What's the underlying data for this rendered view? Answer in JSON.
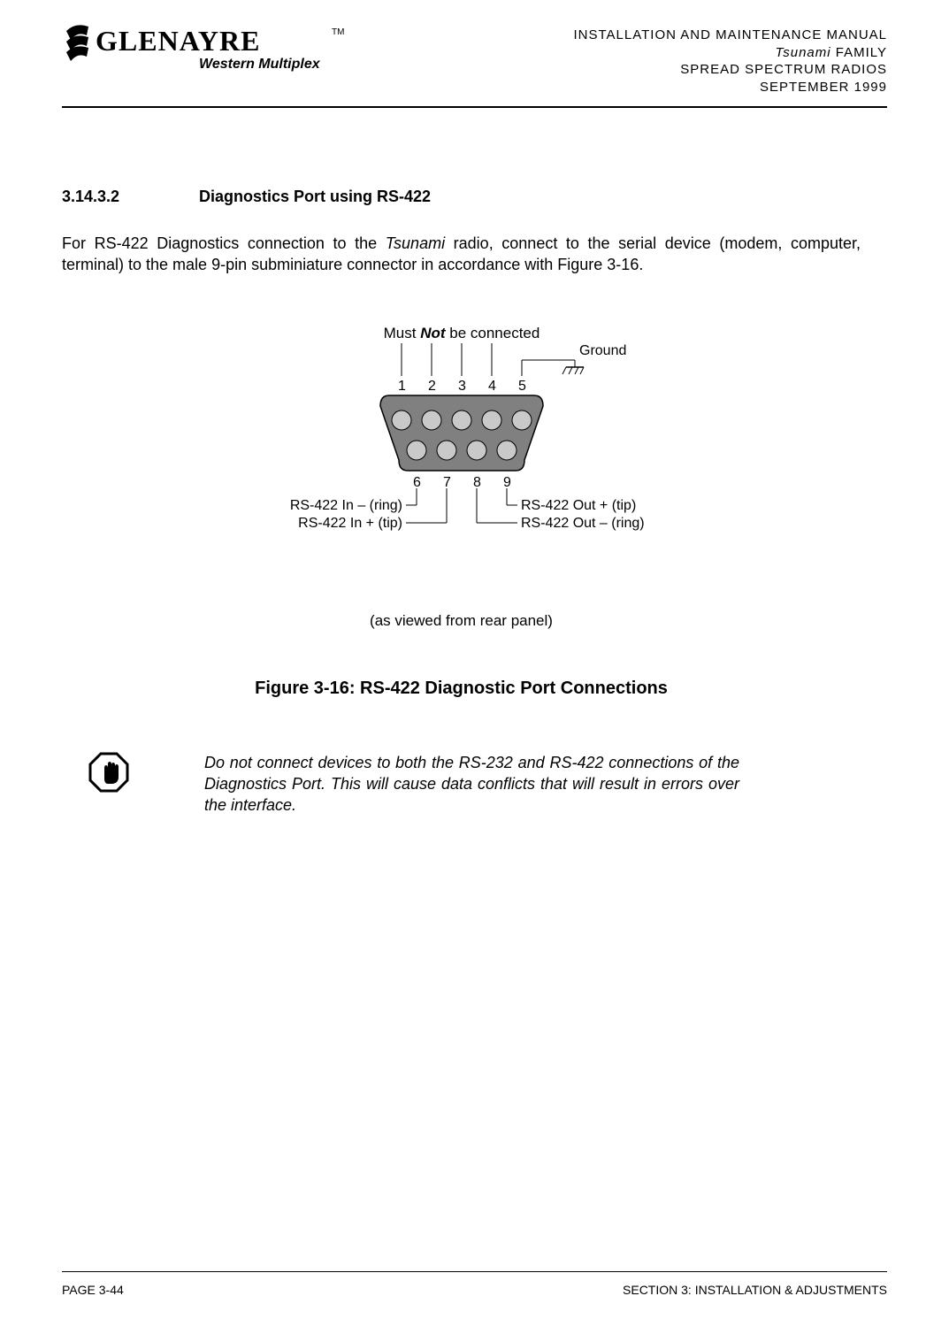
{
  "header": {
    "company": "GLENAYRE",
    "division": "Western Multiplex",
    "tm": "TM",
    "lines": [
      "INSTALLATION AND MAINTENANCE MANUAL",
      "Tsunami FAMILY",
      "SPREAD SPECTRUM RADIOS",
      "SEPTEMBER 1999"
    ],
    "line2_italic": "Tsunami",
    "line2_rest": " FAMILY"
  },
  "section": {
    "number": "3.14.3.2",
    "title": "Diagnostics Port using RS-422"
  },
  "paragraph": {
    "pre": "For RS-422 Diagnostics connection to the ",
    "italic": "Tsunami",
    "post": " radio, connect to the serial device (modem, computer, terminal) to the male 9-pin subminiature connector in accordance with Figure 3-16."
  },
  "diagram": {
    "top_label_pre": "Must ",
    "top_label_bold": "Not",
    "top_label_post": " be connected",
    "ground": "Ground",
    "pins_top": [
      "1",
      "2",
      "3",
      "4",
      "5"
    ],
    "pins_bottom": [
      "6",
      "7",
      "8",
      "9"
    ],
    "left_labels": {
      "in_ring": "RS-422 In – (ring)",
      "in_tip": "RS-422 In + (tip)"
    },
    "right_labels": {
      "out_tip": "RS-422 Out + (tip)",
      "out_ring": "RS-422 Out – (ring)"
    },
    "view_note": "(as viewed from rear panel)",
    "colors": {
      "shell": "#808080",
      "shell_stroke": "#000000",
      "pin_fill": "#c9c9c9",
      "line": "#000000",
      "text": "#000000"
    }
  },
  "figure_title": "Figure 3-16: RS-422 Diagnostic Port Connections",
  "note": "Do not connect devices to both the RS-232 and RS-422 connections of the Diagnostics Port. This will cause data conflicts that will result in errors over the interface.",
  "footer": {
    "left": "PAGE 3-44",
    "right": "SECTION 3: INSTALLATION & ADJUSTMENTS"
  }
}
